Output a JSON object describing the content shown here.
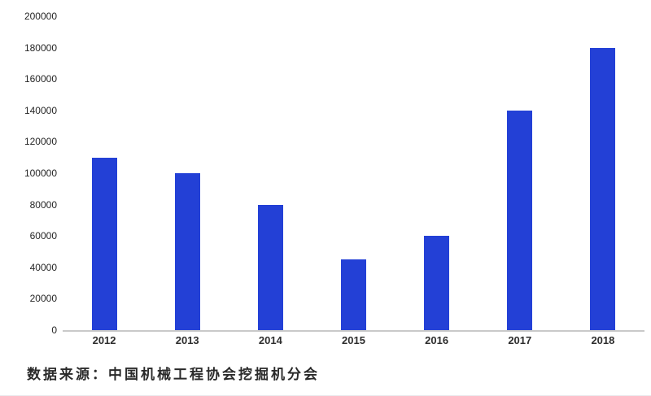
{
  "source_caption": "数据来源：中国机械工程协会挖掘机分会",
  "chart_data": {
    "type": "bar",
    "categories": [
      "2012",
      "2013",
      "2014",
      "2015",
      "2016",
      "2017",
      "2018"
    ],
    "values": [
      110000,
      100000,
      80000,
      45000,
      60000,
      140000,
      180000
    ],
    "title": "",
    "xlabel": "",
    "ylabel": "",
    "ylim": [
      0,
      200000
    ],
    "ytick_step": 20000,
    "ytick_labels": [
      "0",
      "20000",
      "40000",
      "60000",
      "80000",
      "100000",
      "120000",
      "140000",
      "160000",
      "180000",
      "200000"
    ],
    "grid": false,
    "legend": "none",
    "bar_color": "#2340d6",
    "axis_line_color": "#c9c9c9",
    "tick_label_color": "#262626"
  }
}
